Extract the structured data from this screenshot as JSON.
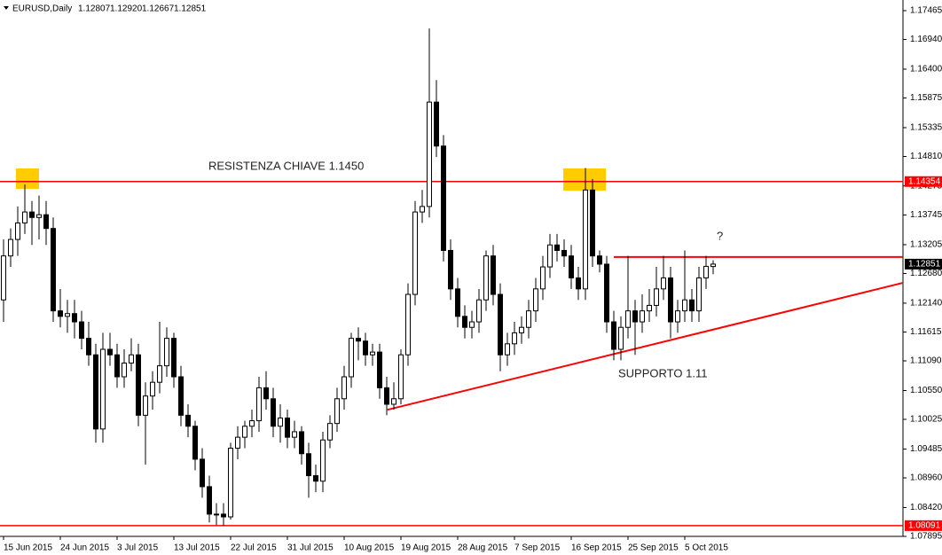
{
  "chart_data": {
    "type": "candlestick",
    "symbol": "EURUSD,Daily",
    "ohlc_label": [
      "1.12807",
      "1.12920",
      "1.12667",
      "1.12851"
    ],
    "categories": [
      "15 Jun 2015",
      null,
      null,
      null,
      null,
      null,
      null,
      null,
      "24 Jun 2015",
      null,
      null,
      null,
      null,
      null,
      null,
      null,
      "3 Jul 2015",
      null,
      null,
      null,
      null,
      null,
      null,
      null,
      "13 Jul 2015",
      null,
      null,
      null,
      null,
      null,
      null,
      null,
      "22 Jul 2015",
      null,
      null,
      null,
      null,
      null,
      null,
      null,
      "31 Jul 2015",
      null,
      null,
      null,
      null,
      null,
      null,
      null,
      "10 Aug 2015",
      null,
      null,
      null,
      null,
      null,
      null,
      null,
      "19 Aug 2015",
      null,
      null,
      null,
      null,
      null,
      null,
      null,
      "28 Aug 2015",
      null,
      null,
      null,
      null,
      null,
      null,
      null,
      "7 Sep 2015",
      null,
      null,
      null,
      null,
      null,
      null,
      null,
      "16 Sep 2015",
      null,
      null,
      null,
      null,
      null,
      null,
      null,
      "25 Sep 2015",
      null,
      null,
      null,
      null,
      null,
      null,
      null,
      "5 Oct 2015",
      null,
      null,
      null,
      null
    ],
    "open": [
      1.122,
      1.13,
      1.133,
      1.136,
      1.138,
      1.137,
      1.1375,
      1.135,
      1.12,
      1.119,
      1.1195,
      1.118,
      1.115,
      1.112,
      1.0985,
      1.113,
      1.112,
      1.108,
      1.1105,
      1.112,
      1.101,
      1.1045,
      1.107,
      1.11,
      1.115,
      1.108,
      1.101,
      1.099,
      1.093,
      1.088,
      1.083,
      1.083,
      1.0825,
      1.095,
      1.097,
      1.099,
      1.1,
      1.106,
      1.104,
      1.099,
      1.1005,
      1.097,
      1.098,
      1.094,
      1.09,
      1.089,
      1.0965,
      1.0995,
      1.104,
      1.108,
      1.115,
      1.1145,
      1.112,
      1.1125,
      1.106,
      1.103,
      1.104,
      1.112,
      1.123,
      1.138,
      1.139,
      1.158,
      1.15,
      1.131,
      1.124,
      1.119,
      1.117,
      1.118,
      1.122,
      1.13,
      1.123,
      1.112,
      1.114,
      1.116,
      1.117,
      1.12,
      1.124,
      1.128,
      1.132,
      1.131,
      1.13,
      1.126,
      1.124,
      1.142,
      1.13,
      1.1285,
      1.118,
      1.113,
      1.117,
      1.12,
      1.118,
      1.12,
      1.121,
      1.124,
      1.126,
      1.118,
      1.12,
      1.122,
      1.12,
      1.126,
      1.12807
    ],
    "high": [
      1.133,
      1.135,
      1.139,
      1.143,
      1.14,
      1.141,
      1.14,
      1.137,
      1.124,
      1.122,
      1.122,
      1.12,
      1.118,
      1.114,
      1.116,
      1.116,
      1.114,
      1.113,
      1.115,
      1.114,
      1.107,
      1.109,
      1.118,
      1.117,
      1.116,
      1.11,
      1.103,
      1.1,
      1.095,
      1.09,
      1.085,
      1.085,
      1.096,
      1.099,
      1.1,
      1.102,
      1.108,
      1.109,
      1.106,
      1.103,
      1.102,
      1.1,
      1.099,
      1.096,
      1.092,
      1.098,
      1.101,
      1.106,
      1.11,
      1.116,
      1.117,
      1.116,
      1.114,
      1.114,
      1.108,
      1.107,
      1.113,
      1.125,
      1.14,
      1.142,
      1.1714,
      1.162,
      1.152,
      1.133,
      1.126,
      1.121,
      1.12,
      1.124,
      1.131,
      1.132,
      1.125,
      1.116,
      1.118,
      1.119,
      1.122,
      1.126,
      1.13,
      1.134,
      1.134,
      1.133,
      1.132,
      1.128,
      1.146,
      1.144,
      1.131,
      1.13,
      1.12,
      1.119,
      1.13,
      1.122,
      1.123,
      1.124,
      1.128,
      1.13,
      1.128,
      1.122,
      1.131,
      1.124,
      1.128,
      1.13,
      1.1292
    ],
    "low": [
      1.118,
      1.128,
      1.13,
      1.134,
      1.132,
      1.133,
      1.132,
      1.118,
      1.117,
      1.116,
      1.115,
      1.113,
      1.11,
      1.096,
      1.096,
      1.11,
      1.106,
      1.106,
      1.109,
      1.099,
      1.092,
      1.102,
      1.105,
      1.108,
      1.106,
      1.099,
      1.097,
      1.091,
      1.086,
      1.0815,
      1.081,
      1.0809,
      1.082,
      1.093,
      1.095,
      1.097,
      1.098,
      1.102,
      1.097,
      1.096,
      1.095,
      1.095,
      1.092,
      1.086,
      1.087,
      1.087,
      1.095,
      1.098,
      1.102,
      1.106,
      1.111,
      1.11,
      1.11,
      1.104,
      1.101,
      1.102,
      1.103,
      1.11,
      1.121,
      1.136,
      1.137,
      1.148,
      1.129,
      1.122,
      1.117,
      1.115,
      1.115,
      1.116,
      1.12,
      1.121,
      1.109,
      1.11,
      1.112,
      1.114,
      1.115,
      1.118,
      1.122,
      1.126,
      1.129,
      1.128,
      1.124,
      1.122,
      1.122,
      1.128,
      1.127,
      1.116,
      1.111,
      1.111,
      1.115,
      1.112,
      1.116,
      1.118,
      1.119,
      1.122,
      1.115,
      1.116,
      1.118,
      1.118,
      1.118,
      1.124,
      1.12667
    ],
    "close": [
      1.13,
      1.133,
      1.136,
      1.138,
      1.137,
      1.1375,
      1.135,
      1.12,
      1.119,
      1.1195,
      1.118,
      1.115,
      1.112,
      1.0985,
      1.113,
      1.112,
      1.108,
      1.1105,
      1.112,
      1.101,
      1.1045,
      1.107,
      1.11,
      1.115,
      1.108,
      1.101,
      1.099,
      1.093,
      1.088,
      1.083,
      1.083,
      1.0825,
      1.095,
      1.097,
      1.099,
      1.1,
      1.106,
      1.104,
      1.099,
      1.1005,
      1.097,
      1.098,
      1.094,
      1.09,
      1.089,
      1.0965,
      1.0995,
      1.104,
      1.108,
      1.115,
      1.1145,
      1.112,
      1.1125,
      1.106,
      1.103,
      1.104,
      1.112,
      1.123,
      1.138,
      1.139,
      1.158,
      1.15,
      1.131,
      1.124,
      1.119,
      1.117,
      1.118,
      1.122,
      1.13,
      1.123,
      1.112,
      1.114,
      1.116,
      1.117,
      1.12,
      1.124,
      1.128,
      1.132,
      1.131,
      1.13,
      1.126,
      1.124,
      1.142,
      1.13,
      1.1285,
      1.118,
      1.113,
      1.117,
      1.12,
      1.118,
      1.12,
      1.121,
      1.124,
      1.126,
      1.118,
      1.12,
      1.122,
      1.12,
      1.126,
      1.1281,
      1.12851
    ],
    "up_color": "#ffffff",
    "down_color": "#000000",
    "ylim": [
      1.07895,
      1.17594
    ],
    "yticks": [
      1.17465,
      {
        "value": 1.1694,
        "label": "1.16940"
      },
      {
        "value": 1.164,
        "label": "1.16400"
      },
      1.15875,
      1.15335,
      {
        "value": 1.1481,
        "label": "1.14810"
      },
      1.14275,
      1.13745,
      1.13205,
      {
        "value": 1.1268,
        "label": "1.12680"
      },
      {
        "value": 1.1214,
        "label": "1.12140"
      },
      1.11615,
      {
        "value": 1.1109,
        "label": "1.11090"
      },
      {
        "value": 1.1055,
        "label": "1.10550"
      },
      1.10025,
      1.09485,
      {
        "value": 1.0896,
        "label": "1.08960"
      },
      {
        "value": 1.0842,
        "label": "1.08420"
      },
      1.07895
    ],
    "levels": [
      {
        "value": 1.14354,
        "color": "#ff0000"
      },
      {
        "value": 1.08091,
        "color": "#ff0000"
      }
    ],
    "price_marker": {
      "value": 1.12851,
      "color": "#000000"
    },
    "segments": [
      {
        "x": [
          86,
          126.75
        ],
        "y": [
          1.1298,
          1.1298
        ],
        "color": "#ff0000"
      },
      {
        "x": [
          54.1,
          126.75
        ],
        "y": [
          1.102,
          1.1251
        ],
        "color": "#ff0000"
      }
    ],
    "annotations": [
      "RESISTENZA CHIAVE 1.1450",
      "SUPPORTO 1.11",
      "?"
    ]
  }
}
